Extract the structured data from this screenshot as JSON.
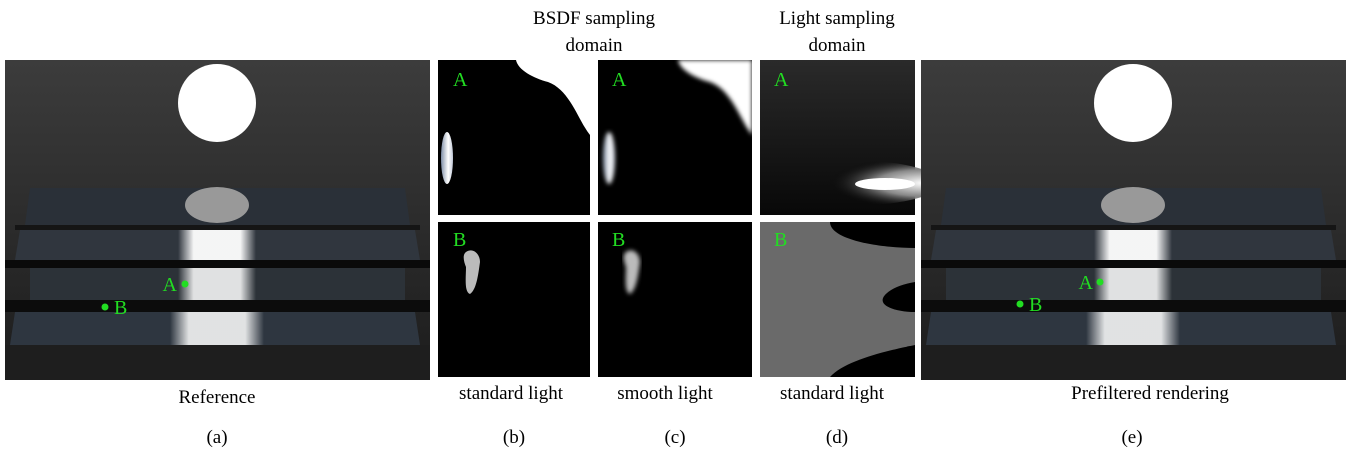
{
  "headers": [
    [
      "BSDF sampling",
      "domain"
    ],
    [
      "Light sampling",
      "domain"
    ]
  ],
  "panels": [
    {
      "caption": "Reference",
      "tag": "(a)",
      "points": [
        "A",
        "B"
      ]
    },
    {
      "caption": "standard light",
      "tag": "(b)",
      "insets": [
        "A",
        "B"
      ]
    },
    {
      "caption": "smooth light",
      "tag": "(c)",
      "insets": [
        "A",
        "B"
      ]
    },
    {
      "caption": "standard light",
      "tag": "(d)",
      "insets": [
        "A",
        "B"
      ]
    },
    {
      "caption": "Prefiltered rendering",
      "tag": "(e)",
      "points": [
        "A",
        "B"
      ]
    }
  ]
}
